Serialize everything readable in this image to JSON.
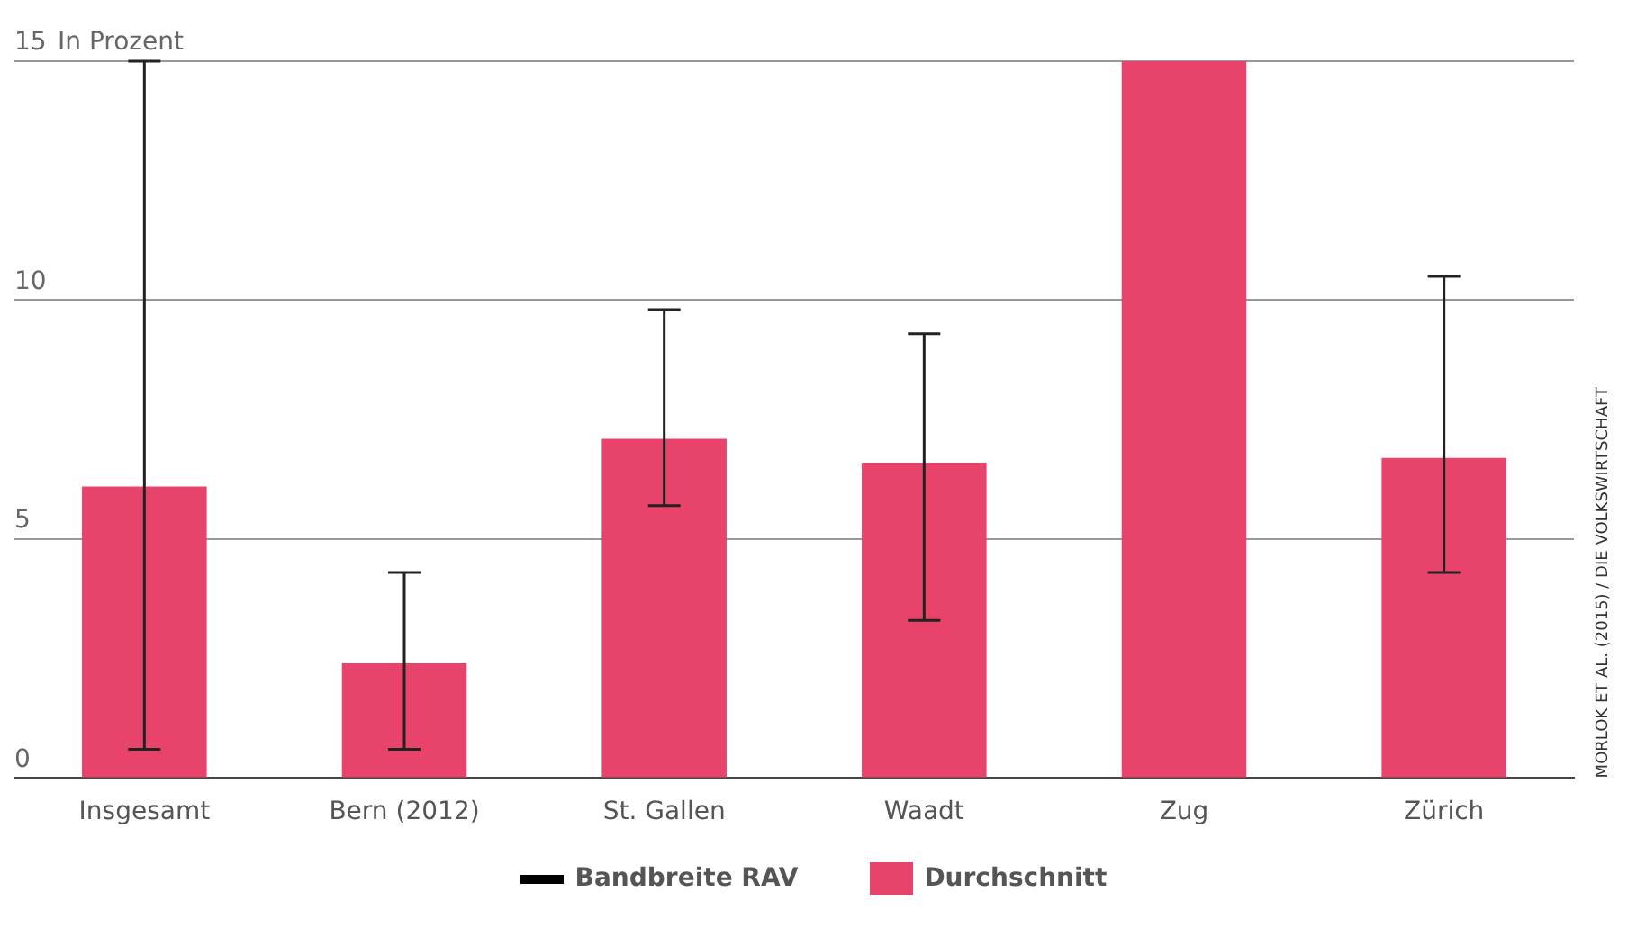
{
  "chart_data": {
    "type": "bar",
    "ylabel": "In Prozent",
    "categories": [
      "Insgesamt",
      "Bern (2012)",
      "St. Gallen",
      "Waadt",
      "Zug",
      "Zürich"
    ],
    "series": [
      {
        "name": "Durchschnitt",
        "color": "#e8436a",
        "values": [
          6.1,
          2.4,
          7.1,
          6.6,
          15,
          6.7
        ],
        "errors": [
          [
            0.6,
            15
          ],
          [
            0.6,
            4.3
          ],
          [
            5.7,
            9.8
          ],
          [
            3.3,
            9.3
          ],
          null,
          [
            4.3,
            10.5
          ]
        ]
      }
    ],
    "ylim": [
      0,
      15
    ],
    "yticks": [
      0,
      5,
      10,
      15
    ],
    "grid": "y",
    "legend": "bottom",
    "annotations": [
      "Bandbreite RAV",
      "MORLOK ET AL. (2015) / DIE VOLKSWIRTSCHAFT"
    ]
  }
}
